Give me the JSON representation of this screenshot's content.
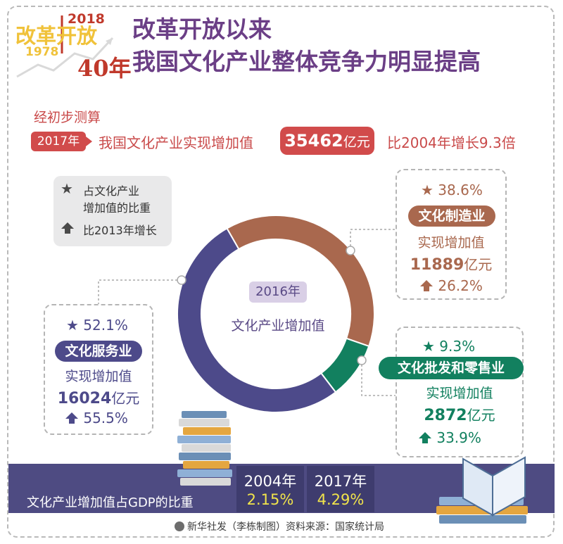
{
  "logo": {
    "line1": "改革开放",
    "year_start": "1978",
    "year_end": "2018",
    "years": "40年"
  },
  "title": {
    "line1": "改革开放以来",
    "line2": "我国文化产业整体竞争力明显提高"
  },
  "intro": {
    "note": "经初步测算",
    "year_pill": "2017年",
    "sentence": "我国文化产业实现增加值",
    "value_number": "35462",
    "value_unit": "亿元",
    "growth": "比2004年增长9.3倍"
  },
  "legend": {
    "star_icon": "star-icon",
    "star_text_line1": "占文化产业",
    "star_text_line2": "增加值的比重",
    "arrow_icon": "up-arrow-icon",
    "arrow_text": "比2013年增长"
  },
  "center": {
    "year": "2016年",
    "label": "文化产业增加值"
  },
  "chart_data": {
    "type": "pie",
    "variant": "donut",
    "title": "2016年 文化产业增加值",
    "slices": [
      {
        "name": "文化制造业",
        "share": 38.6,
        "value": 11889,
        "unit": "亿元",
        "growth_since_2013": 26.2,
        "color": "#a9684e"
      },
      {
        "name": "文化批发和零售业",
        "share": 9.3,
        "value": 2872,
        "unit": "亿元",
        "growth_since_2013": 33.9,
        "color": "#12805f"
      },
      {
        "name": "文化服务业",
        "share": 52.1,
        "value": 16024,
        "unit": "亿元",
        "growth_since_2013": 55.5,
        "color": "#4d4a8a"
      }
    ]
  },
  "cards": {
    "manufacturing": {
      "share": "38.6%",
      "name": "文化制造业",
      "caption": "实现增加值",
      "value": "11889",
      "unit": "亿元",
      "growth": "26.2%"
    },
    "wholesale": {
      "share": "9.3%",
      "name": "文化批发和零售业",
      "caption": "实现增加值",
      "value": "2872",
      "unit": "亿元",
      "growth": "33.9%"
    },
    "services": {
      "share": "52.1%",
      "name": "文化服务业",
      "caption": "实现增加值",
      "value": "16024",
      "unit": "亿元",
      "growth": "55.5%"
    }
  },
  "gdp": {
    "label": "文化产业增加值占GDP的比重",
    "year1": "2004年",
    "value1": "2.15%",
    "year2": "2017年",
    "value2": "4.29%"
  },
  "credit": "新华社发（李栋制图）资料来源：国家统计局",
  "colors": {
    "title": "#6b3f86",
    "accent_red": "#d14b4b",
    "brown": "#a9684e",
    "green": "#12805f",
    "navy": "#4d4a8a",
    "bar": "#4e4b82",
    "highlight": "#f1e44b"
  }
}
